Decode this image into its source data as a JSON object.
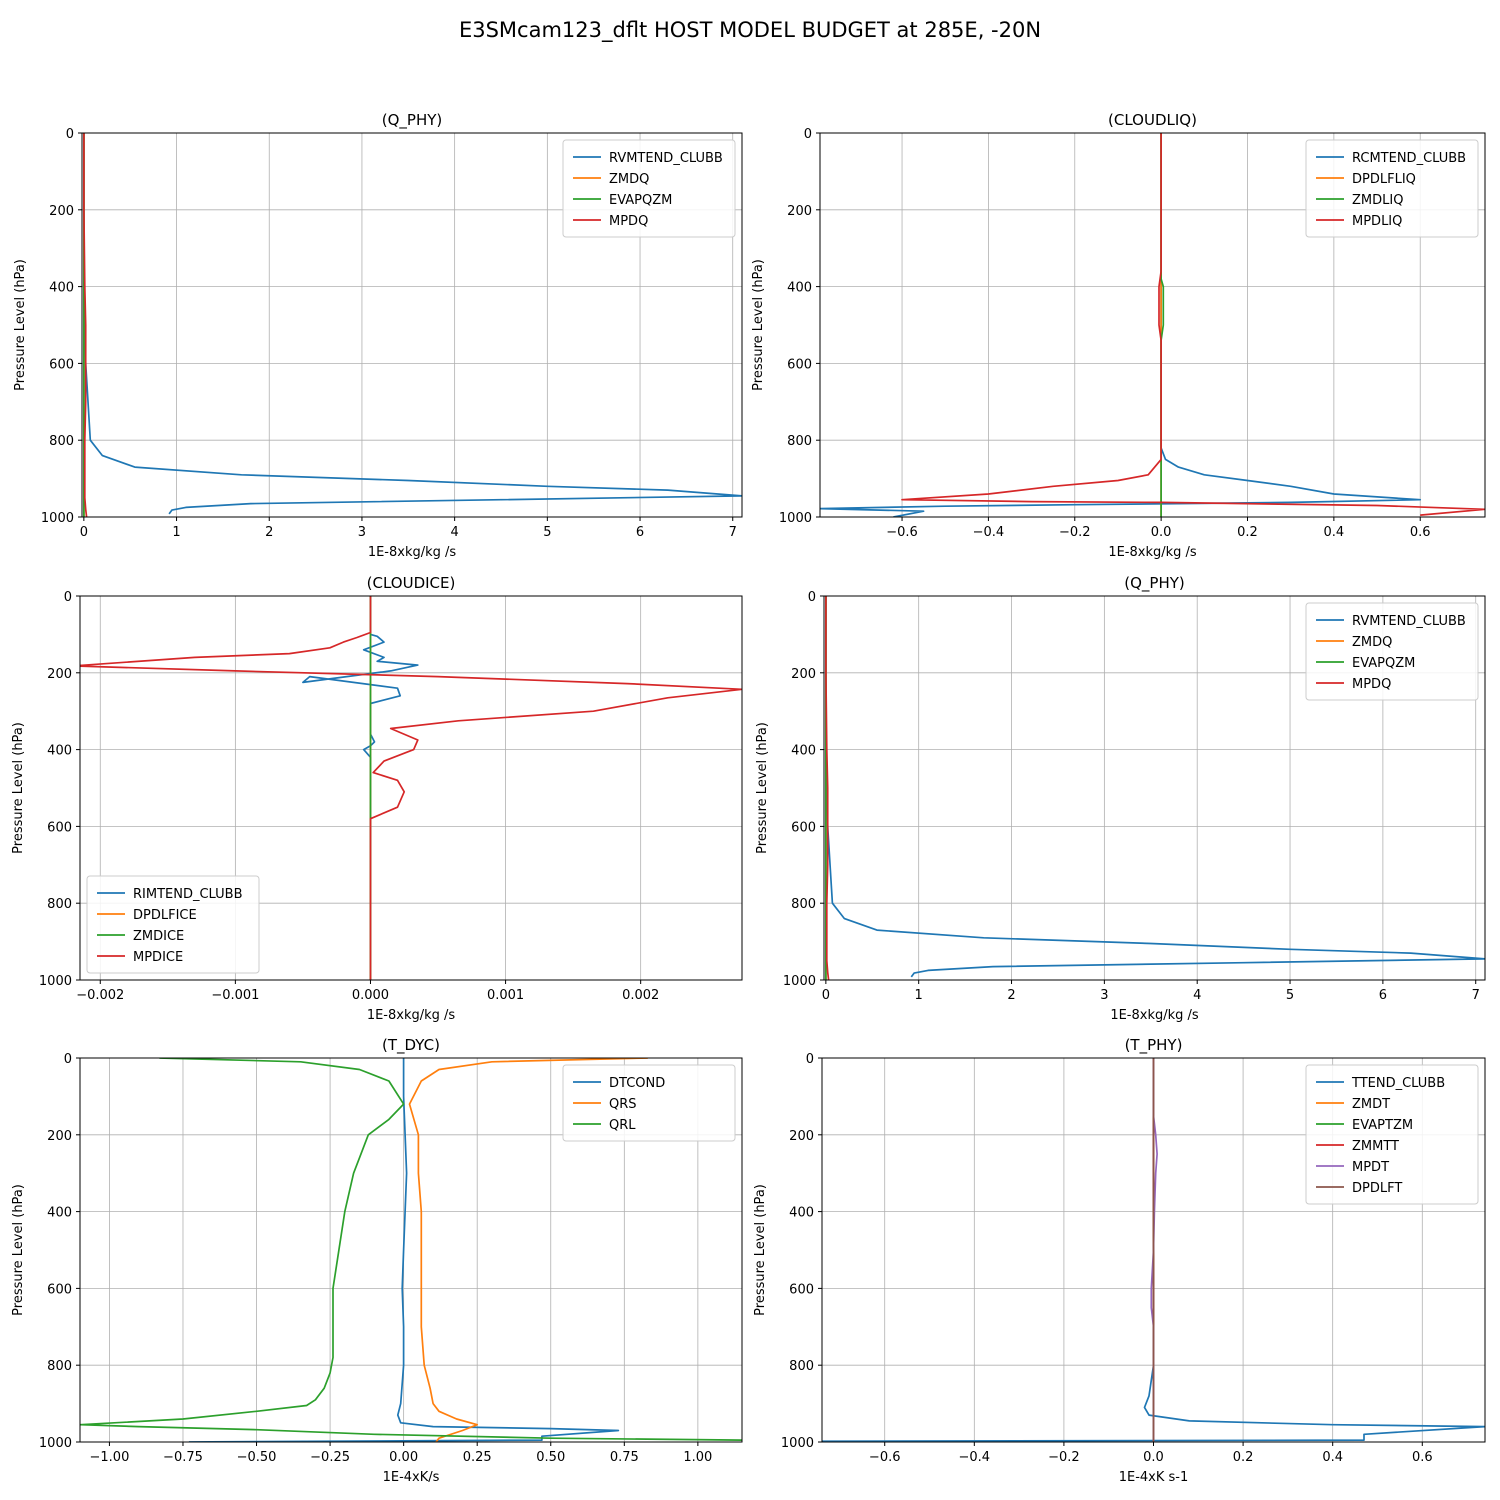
{
  "figure": {
    "title": "E3SMcam123_dflt HOST MODEL BUDGET at 285E, -20N"
  },
  "colors": {
    "c1": "#1f77b4",
    "c2": "#ff7f0e",
    "c3": "#2ca02c",
    "c4": "#d62728",
    "c5": "#9467bd",
    "c6": "#8c564b"
  },
  "chart_data": [
    {
      "type": "line",
      "title": "(Q_PHY)",
      "xlabel": "1E-8xkg/kg /s",
      "ylabel": "Pressure Level (hPa)",
      "xlim": [
        -0.02,
        7.1
      ],
      "ylim": [
        1000,
        0
      ],
      "xticks": [
        0,
        1,
        2,
        3,
        4,
        5,
        6,
        7
      ],
      "xtick_labels": [
        "0",
        "1",
        "2",
        "3",
        "4",
        "5",
        "6",
        "7"
      ],
      "yticks": [
        0,
        200,
        400,
        600,
        800,
        1000
      ],
      "ytick_labels": [
        "0",
        "200",
        "400",
        "600",
        "800",
        "1000"
      ],
      "grid": true,
      "legend": "upper right",
      "series": [
        {
          "name": "RVMTEND_CLUBB",
          "color": "#1f77b4",
          "x": [
            0,
            0,
            0,
            0.02,
            0.07,
            0.2,
            0.55,
            1.7,
            3.5,
            5,
            6.3,
            7.1,
            4.5,
            1.8,
            1.1,
            0.95,
            0.92
          ],
          "y": [
            0,
            200,
            400,
            600,
            800,
            840,
            870,
            890,
            905,
            920,
            930,
            945,
            955,
            965,
            975,
            982,
            992
          ]
        },
        {
          "name": "ZMDQ",
          "color": "#ff7f0e",
          "x": [
            0,
            0,
            0,
            0
          ],
          "y": [
            0,
            400,
            800,
            1000
          ]
        },
        {
          "name": "EVAPQZM",
          "color": "#2ca02c",
          "x": [
            0,
            0,
            0,
            0
          ],
          "y": [
            0,
            200,
            300,
            1000
          ]
        },
        {
          "name": "MPDQ",
          "color": "#d62728",
          "x": [
            0,
            0,
            0.01,
            0.02,
            0.02,
            0.02,
            0.01,
            0.01,
            0.01,
            0.02,
            0.03
          ],
          "y": [
            0,
            200,
            400,
            500,
            600,
            700,
            800,
            900,
            950,
            980,
            1000
          ]
        }
      ]
    },
    {
      "type": "line",
      "title": "(CLOUDLIQ)",
      "xlabel": "1E-8xkg/kg /s",
      "ylabel": "Pressure Level (hPa)",
      "xlim": [
        -0.79,
        0.75
      ],
      "ylim": [
        1000,
        0
      ],
      "xticks": [
        -0.6,
        -0.4,
        -0.2,
        0,
        0.2,
        0.4,
        0.6
      ],
      "xtick_labels": [
        "−0.6",
        "−0.4",
        "−0.2",
        "0.0",
        "0.2",
        "0.4",
        "0.6"
      ],
      "yticks": [
        0,
        200,
        400,
        600,
        800,
        1000
      ],
      "ytick_labels": [
        "0",
        "200",
        "400",
        "600",
        "800",
        "1000"
      ],
      "grid": true,
      "legend": "upper right",
      "series": [
        {
          "name": "RCMTEND_CLUBB",
          "color": "#1f77b4",
          "x": [
            0,
            0,
            0,
            0,
            0,
            0.01,
            0.04,
            0.1,
            0.2,
            0.3,
            0.4,
            0.6,
            0.3,
            -0.2,
            -0.5,
            -0.79,
            -0.55,
            -0.62
          ],
          "y": [
            0,
            200,
            400,
            600,
            820,
            850,
            870,
            890,
            905,
            920,
            940,
            955,
            962,
            968,
            972,
            978,
            985,
            1000
          ]
        },
        {
          "name": "DPDLFLIQ",
          "color": "#ff7f0e",
          "x": [
            0,
            0,
            0
          ],
          "y": [
            0,
            500,
            1000
          ]
        },
        {
          "name": "ZMDLIQ",
          "color": "#2ca02c",
          "x": [
            0,
            0,
            0.005,
            0.005,
            0,
            0,
            0
          ],
          "y": [
            0,
            380,
            400,
            500,
            540,
            800,
            1000
          ]
        },
        {
          "name": "MPDLIQ",
          "color": "#d62728",
          "x": [
            0,
            0,
            -0.005,
            -0.005,
            0,
            0,
            -0.03,
            -0.1,
            -0.25,
            -0.4,
            -0.6,
            -0.3,
            0,
            0.5,
            0.75,
            0.6
          ],
          "y": [
            0,
            360,
            400,
            500,
            540,
            850,
            890,
            905,
            920,
            940,
            955,
            960,
            962,
            970,
            980,
            995
          ]
        }
      ]
    },
    {
      "type": "line",
      "title": "(CLOUDICE)",
      "xlabel": "1E-8xkg/kg /s",
      "ylabel": "Pressure Level (hPa)",
      "xlim": [
        -0.00215,
        0.00275
      ],
      "ylim": [
        1000,
        0
      ],
      "xticks": [
        -0.002,
        -0.001,
        0,
        0.001,
        0.002
      ],
      "xtick_labels": [
        "−0.002",
        "−0.001",
        "0.000",
        "0.001",
        "0.002"
      ],
      "yticks": [
        0,
        200,
        400,
        600,
        800,
        1000
      ],
      "ytick_labels": [
        "0",
        "200",
        "400",
        "600",
        "800",
        "1000"
      ],
      "grid": true,
      "legend": "lower left",
      "series": [
        {
          "name": "RIMTEND_CLUBB",
          "color": "#1f77b4",
          "x": [
            0,
            0,
            5e-05,
            0.0001,
            -5e-05,
            0.0001,
            5e-05,
            0.00035,
            0.00015,
            -0.0005,
            -0.00045,
            0.0002,
            0.00022,
            0,
            0,
            3e-05,
            0,
            -5e-05,
            0,
            0,
            0,
            0
          ],
          "y": [
            0,
            100,
            105,
            120,
            140,
            160,
            170,
            180,
            195,
            225,
            210,
            240,
            260,
            280,
            360,
            380,
            390,
            400,
            420,
            600,
            800,
            1000
          ]
        },
        {
          "name": "DPDLFICE",
          "color": "#ff7f0e",
          "x": [
            0,
            0
          ],
          "y": [
            0,
            1000
          ]
        },
        {
          "name": "ZMDICE",
          "color": "#2ca02c",
          "x": [
            0,
            0,
            0
          ],
          "y": [
            0,
            500,
            1000
          ]
        },
        {
          "name": "MPDICE",
          "color": "#d62728",
          "x": [
            0,
            0,
            -0.0001,
            -0.0002,
            -0.0003,
            -0.0006,
            -0.0013,
            -0.0022,
            -0.001,
            0.0005,
            0.0019,
            0.00275,
            0.0022,
            0.00165,
            0.00065,
            0.00015,
            0.00035,
            0.00032,
            0.0001,
            2e-05,
            0.0002,
            0.00025,
            0.0002,
            0,
            0,
            0
          ],
          "y": [
            0,
            95,
            108,
            120,
            135,
            150,
            160,
            182,
            195,
            210,
            228,
            243,
            265,
            300,
            325,
            345,
            375,
            400,
            430,
            460,
            480,
            510,
            550,
            580,
            800,
            1000
          ]
        }
      ]
    },
    {
      "type": "line",
      "title": "(Q_PHY)",
      "xlabel": "1E-8xkg/kg /s",
      "ylabel": "Pressure Level (hPa)",
      "xlim": [
        -0.02,
        7.1
      ],
      "ylim": [
        1000,
        0
      ],
      "xticks": [
        0,
        1,
        2,
        3,
        4,
        5,
        6,
        7
      ],
      "xtick_labels": [
        "0",
        "1",
        "2",
        "3",
        "4",
        "5",
        "6",
        "7"
      ],
      "yticks": [
        0,
        200,
        400,
        600,
        800,
        1000
      ],
      "ytick_labels": [
        "0",
        "200",
        "400",
        "600",
        "800",
        "1000"
      ],
      "grid": true,
      "legend": "upper right",
      "series": [
        {
          "name": "RVMTEND_CLUBB",
          "color": "#1f77b4",
          "x": [
            0,
            0,
            0,
            0.02,
            0.07,
            0.2,
            0.55,
            1.7,
            3.5,
            5,
            6.3,
            7.1,
            4.5,
            1.8,
            1.1,
            0.95,
            0.92
          ],
          "y": [
            0,
            200,
            400,
            600,
            800,
            840,
            870,
            890,
            905,
            920,
            930,
            945,
            955,
            965,
            975,
            982,
            992
          ]
        },
        {
          "name": "ZMDQ",
          "color": "#ff7f0e",
          "x": [
            0,
            0,
            0,
            0
          ],
          "y": [
            0,
            400,
            800,
            1000
          ]
        },
        {
          "name": "EVAPQZM",
          "color": "#2ca02c",
          "x": [
            0,
            0,
            0,
            0
          ],
          "y": [
            0,
            200,
            300,
            1000
          ]
        },
        {
          "name": "MPDQ",
          "color": "#d62728",
          "x": [
            0,
            0,
            0.01,
            0.02,
            0.02,
            0.02,
            0.01,
            0.01,
            0.01,
            0.02,
            0.03
          ],
          "y": [
            0,
            200,
            400,
            500,
            600,
            700,
            800,
            900,
            950,
            980,
            1000
          ]
        }
      ]
    },
    {
      "type": "line",
      "title": "(T_DYC)",
      "xlabel": "1E-4xK/s",
      "ylabel": "Pressure Level (hPa)",
      "xlim": [
        -1.1,
        1.15
      ],
      "ylim": [
        1000,
        0
      ],
      "xticks": [
        -1,
        -0.75,
        -0.5,
        -0.25,
        0,
        0.25,
        0.5,
        0.75,
        1
      ],
      "xtick_labels": [
        "−1.00",
        "−0.75",
        "−0.50",
        "−0.25",
        "0.00",
        "0.25",
        "0.50",
        "0.75",
        "1.00"
      ],
      "yticks": [
        0,
        200,
        400,
        600,
        800,
        1000
      ],
      "ytick_labels": [
        "0",
        "200",
        "400",
        "600",
        "800",
        "1000"
      ],
      "grid": true,
      "legend": "upper right",
      "series": [
        {
          "name": "DTCOND",
          "color": "#1f77b4",
          "x": [
            0,
            0,
            0.005,
            0.01,
            0.005,
            0,
            -0.005,
            0,
            0,
            -0.01,
            -0.02,
            -0.01,
            0.1,
            0.5,
            0.73,
            0.47,
            0.47,
            -0.73
          ],
          "y": [
            0,
            100,
            200,
            300,
            400,
            500,
            600,
            700,
            800,
            900,
            930,
            950,
            960,
            965,
            970,
            985,
            995,
            1000
          ]
        },
        {
          "name": "QRS",
          "color": "#ff7f0e",
          "x": [
            0.83,
            0.3,
            0.12,
            0.06,
            0.02,
            0.05,
            0.05,
            0.06,
            0.06,
            0.06,
            0.06,
            0.07,
            0.09,
            0.1,
            0.12,
            0.18,
            0.25,
            0.2,
            0.12,
            0.11
          ],
          "y": [
            0,
            10,
            30,
            60,
            120,
            200,
            300,
            400,
            500,
            600,
            700,
            800,
            860,
            900,
            920,
            940,
            955,
            970,
            990,
            1000
          ]
        },
        {
          "name": "QRL",
          "color": "#2ca02c",
          "x": [
            -0.83,
            -0.35,
            -0.15,
            -0.05,
            0,
            -0.05,
            -0.12,
            -0.15,
            -0.17,
            -0.2,
            -0.22,
            -0.24,
            -0.24,
            -0.24,
            -0.24,
            -0.25,
            -0.27,
            -0.3,
            -0.33,
            -0.5,
            -0.75,
            -1.1,
            -0.9,
            -0.5,
            -0.1,
            0.5,
            1.15
          ],
          "y": [
            0,
            10,
            30,
            60,
            120,
            160,
            200,
            260,
            300,
            400,
            500,
            600,
            700,
            750,
            780,
            820,
            860,
            890,
            905,
            920,
            940,
            955,
            960,
            968,
            980,
            990,
            995
          ]
        }
      ]
    },
    {
      "type": "line",
      "title": "(T_PHY)",
      "xlabel": "1E-4xK s-1",
      "ylabel": "Pressure Level (hPa)",
      "xlim": [
        -0.74,
        0.74
      ],
      "ylim": [
        1000,
        0
      ],
      "xticks": [
        -0.6,
        -0.4,
        -0.2,
        0,
        0.2,
        0.4,
        0.6
      ],
      "xtick_labels": [
        "−0.6",
        "−0.4",
        "−0.2",
        "0.0",
        "0.2",
        "0.4",
        "0.6"
      ],
      "yticks": [
        0,
        200,
        400,
        600,
        800,
        1000
      ],
      "ytick_labels": [
        "0",
        "200",
        "400",
        "600",
        "800",
        "1000"
      ],
      "grid": true,
      "legend": "upper right",
      "series": [
        {
          "name": "TTEND_CLUBB",
          "color": "#1f77b4",
          "x": [
            0,
            0,
            0,
            0,
            0,
            -0.01,
            -0.02,
            -0.01,
            0.08,
            0.4,
            0.74,
            0.47,
            0.47,
            -0.74
          ],
          "y": [
            0,
            200,
            400,
            600,
            800,
            880,
            910,
            930,
            945,
            955,
            960,
            980,
            995,
            998
          ]
        },
        {
          "name": "ZMDT",
          "color": "#ff7f0e",
          "x": [
            0,
            0
          ],
          "y": [
            0,
            1000
          ]
        },
        {
          "name": "EVAPTZM",
          "color": "#2ca02c",
          "x": [
            0,
            0
          ],
          "y": [
            0,
            1000
          ]
        },
        {
          "name": "ZMMTT",
          "color": "#d62728",
          "x": [
            0,
            0
          ],
          "y": [
            0,
            1000
          ]
        },
        {
          "name": "MPDT",
          "color": "#9467bd",
          "x": [
            0,
            0,
            0.005,
            0.008,
            0.005,
            0.002,
            0,
            -0.005,
            -0.005,
            0,
            0,
            0
          ],
          "y": [
            0,
            150,
            200,
            250,
            300,
            400,
            500,
            600,
            650,
            700,
            800,
            1000
          ]
        },
        {
          "name": "DPDLFT",
          "color": "#8c564b",
          "x": [
            0,
            0
          ],
          "y": [
            0,
            1000
          ]
        }
      ]
    }
  ]
}
